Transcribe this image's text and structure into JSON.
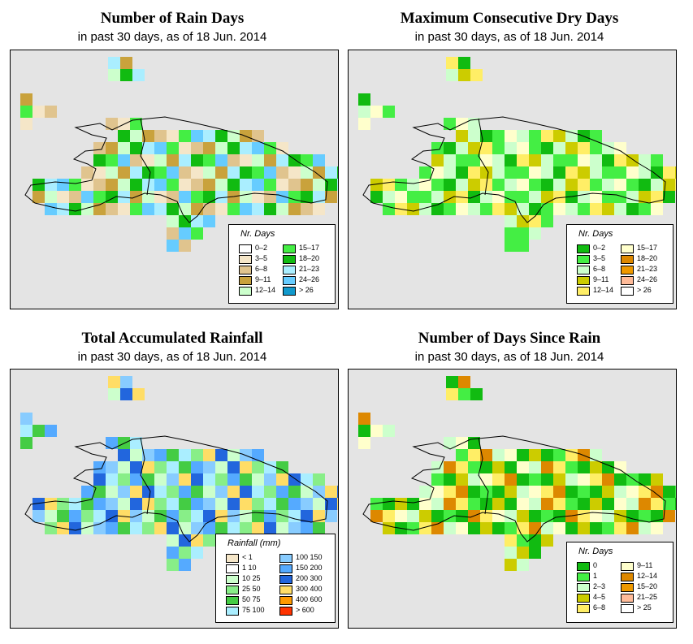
{
  "panels": [
    {
      "title": "Number of Rain Days",
      "subtitle": "in past 30 days, as of  18 Jun. 2014",
      "legend": {
        "title": "Nr. Days",
        "entries": [
          {
            "label": "0–2",
            "color": "#ffffff"
          },
          {
            "label": "3–5",
            "color": "#f5e6c8"
          },
          {
            "label": "6–8",
            "color": "#e0c48e"
          },
          {
            "label": "9–11",
            "color": "#c9a23c"
          },
          {
            "label": "12–14",
            "color": "#ccffcc"
          },
          {
            "label": "15–17",
            "color": "#44ee44"
          },
          {
            "label": "18–20",
            "color": "#11bb11"
          },
          {
            "label": "21–23",
            "color": "#aaeeff"
          },
          {
            "label": "24–26",
            "color": "#66ccff"
          },
          {
            "label": "> 26",
            "color": "#1199cc"
          }
        ]
      }
    },
    {
      "title": "Maximum Consecutive Dry Days",
      "subtitle": "in past 30 days, as of  18 Jun. 2014",
      "legend": {
        "title": "Nr. Days",
        "entries": [
          {
            "label": "0–2",
            "color": "#11bb11"
          },
          {
            "label": "3–5",
            "color": "#44ee44"
          },
          {
            "label": "6–8",
            "color": "#ccffcc"
          },
          {
            "label": "9–11",
            "color": "#cccc00"
          },
          {
            "label": "12–14",
            "color": "#ffee66"
          },
          {
            "label": "15–17",
            "color": "#ffffcc"
          },
          {
            "label": "18–20",
            "color": "#dd8800"
          },
          {
            "label": "21–23",
            "color": "#ee9900"
          },
          {
            "label": "24–26",
            "color": "#ffbb99"
          },
          {
            "label": "> 26",
            "color": "#ffffff"
          }
        ]
      }
    },
    {
      "title": "Total Accumulated Rainfall",
      "subtitle": "in past 30 days, as of  18 Jun. 2014",
      "legend": {
        "title": "Rainfall (mm)",
        "entries": [
          {
            "label": "< 1",
            "color": "#f5e6c8"
          },
          {
            "label": "1    10",
            "color": "#ffffff"
          },
          {
            "label": "10    25",
            "color": "#ccffcc"
          },
          {
            "label": "25    50",
            "color": "#88ee88"
          },
          {
            "label": "50    75",
            "color": "#44cc44"
          },
          {
            "label": "75  100",
            "color": "#aaeeff"
          },
          {
            "label": "100  150",
            "color": "#88ccff"
          },
          {
            "label": "150  200",
            "color": "#55aaff"
          },
          {
            "label": "200  300",
            "color": "#2266dd"
          },
          {
            "label": "300  400",
            "color": "#ffdd66"
          },
          {
            "label": "400  600",
            "color": "#ff9900"
          },
          {
            "label": "> 600",
            "color": "#ff3300"
          }
        ]
      }
    },
    {
      "title": "Number of Days Since Rain",
      "subtitle": "in past 30 days, as of  18 Jun. 2014",
      "legend": {
        "title": "Nr. Days",
        "entries": [
          {
            "label": "0",
            "color": "#11bb11"
          },
          {
            "label": "1",
            "color": "#44ee44"
          },
          {
            "label": "2–3",
            "color": "#ccffcc"
          },
          {
            "label": "4–5",
            "color": "#cccc00"
          },
          {
            "label": "6–8",
            "color": "#ffee66"
          },
          {
            "label": "9–11",
            "color": "#ffffcc"
          },
          {
            "label": "12–14",
            "color": "#dd8800"
          },
          {
            "label": "15–20",
            "color": "#ee9900"
          },
          {
            "label": "21–25",
            "color": "#ffbb99"
          },
          {
            "label": "> 25",
            "color": "#ffffff"
          }
        ]
      }
    }
  ]
}
